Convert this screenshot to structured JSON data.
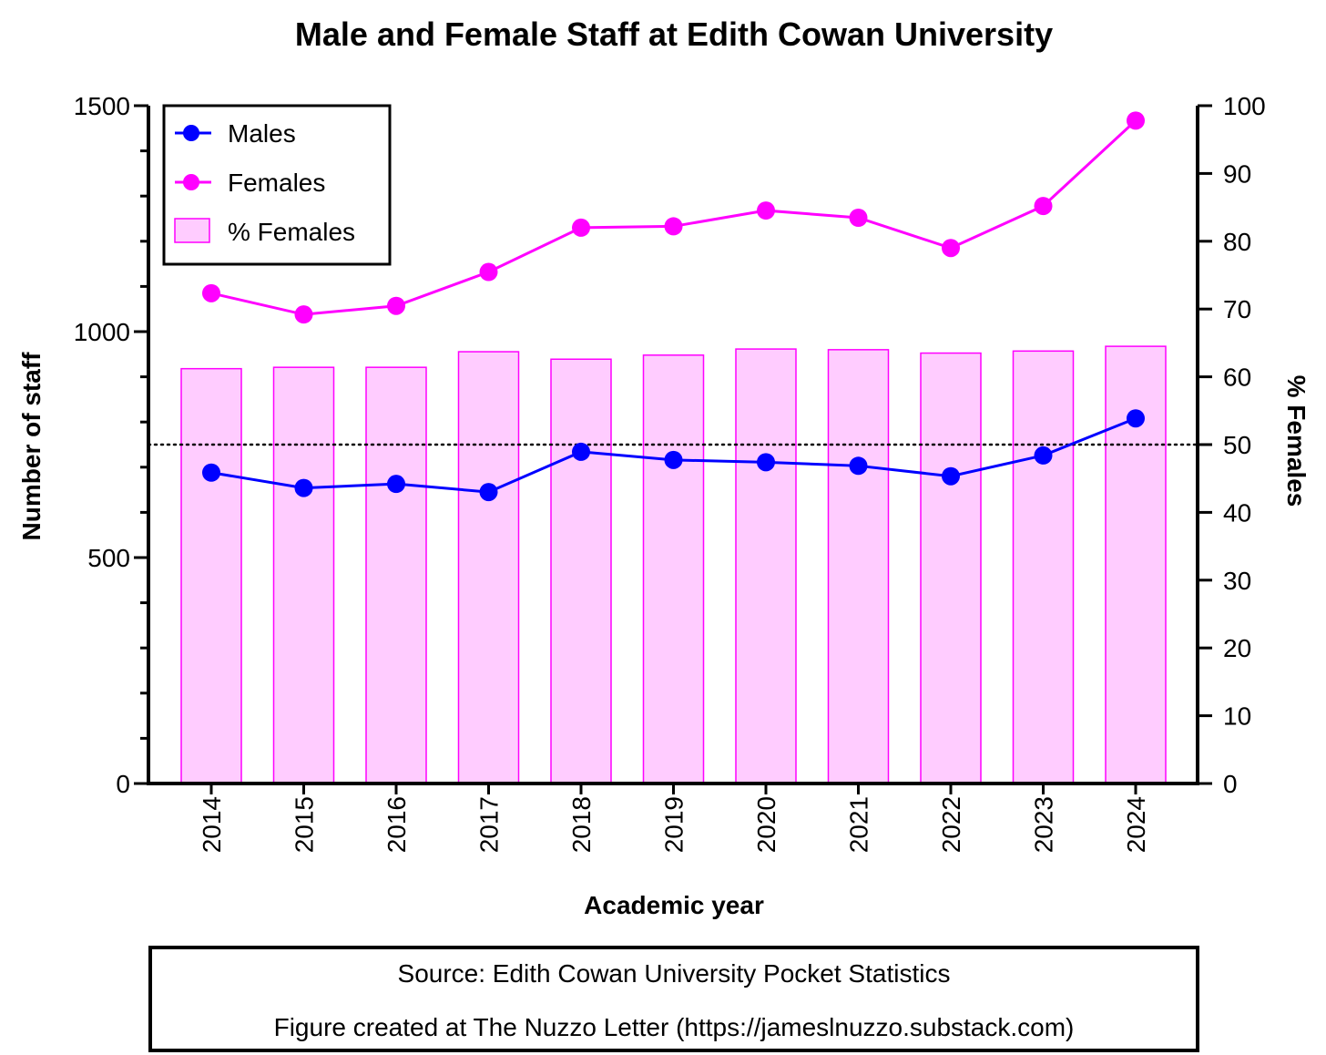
{
  "chart_data": {
    "type": "bar",
    "title": "Male and Female Staff at Edith Cowan University",
    "xlabel": "Academic year",
    "ylabel": "Number of staff",
    "y2label": "% Females",
    "categories": [
      "2014",
      "2015",
      "2016",
      "2017",
      "2018",
      "2019",
      "2020",
      "2021",
      "2022",
      "2023",
      "2024"
    ],
    "ylim": [
      0,
      1500
    ],
    "y2lim": [
      0,
      100
    ],
    "yticks": [
      "0",
      "500",
      "1000",
      "1500"
    ],
    "y2ticks": [
      "0",
      "10",
      "20",
      "30",
      "40",
      "50",
      "60",
      "70",
      "80",
      "90",
      "100"
    ],
    "reference_line": {
      "axis": "y2",
      "value": 50,
      "style": "dotted"
    },
    "legend_position": "top-left",
    "series": [
      {
        "name": "Males",
        "kind": "line",
        "axis": "y",
        "color": "#0000ff",
        "values": [
          688,
          654,
          663,
          645,
          734,
          716,
          711,
          703,
          680,
          726,
          808
        ]
      },
      {
        "name": "Females",
        "kind": "line",
        "axis": "y",
        "color": "#ff00ff",
        "values": [
          1085,
          1038,
          1057,
          1132,
          1230,
          1233,
          1268,
          1252,
          1185,
          1278,
          1467
        ]
      },
      {
        "name": "% Females",
        "kind": "bar",
        "axis": "y2",
        "color": "#ff00ff",
        "fill": "#ffccff",
        "values": [
          61.2,
          61.4,
          61.4,
          63.7,
          62.6,
          63.2,
          64.1,
          64.0,
          63.5,
          63.8,
          64.5
        ]
      }
    ]
  },
  "source_box": {
    "line1": "Source: Edith Cowan University Pocket Statistics",
    "line2": "Figure created at The Nuzzo Letter (https://jameslnuzzo.substack.com)"
  }
}
